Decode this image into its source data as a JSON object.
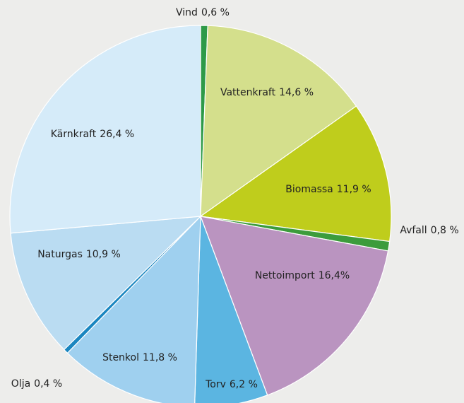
{
  "chart_data": {
    "type": "pie",
    "categories": [
      "Vind",
      "Vattenkraft",
      "Biomassa",
      "Avfall",
      "Nettoimport",
      "Torv",
      "Stenkol",
      "Olja",
      "Naturgas",
      "Kärnkraft"
    ],
    "values": [
      0.6,
      14.6,
      11.9,
      0.8,
      16.4,
      6.2,
      11.8,
      0.4,
      10.9,
      26.4
    ],
    "value_labels": [
      "0,6 %",
      "14,6 %",
      "11,9 %",
      "0,8 %",
      "16,4%",
      "6,2 %",
      "11,8 %",
      "0,4 %",
      "10,9 %",
      "26,4 %"
    ],
    "colors": [
      "#2e9a48",
      "#d4df8c",
      "#bfcd1c",
      "#3c9c3c",
      "#ba94c0",
      "#5bb5e1",
      "#9fd0ef",
      "#1a86c0",
      "#badcf2",
      "#d5ebf9"
    ]
  }
}
